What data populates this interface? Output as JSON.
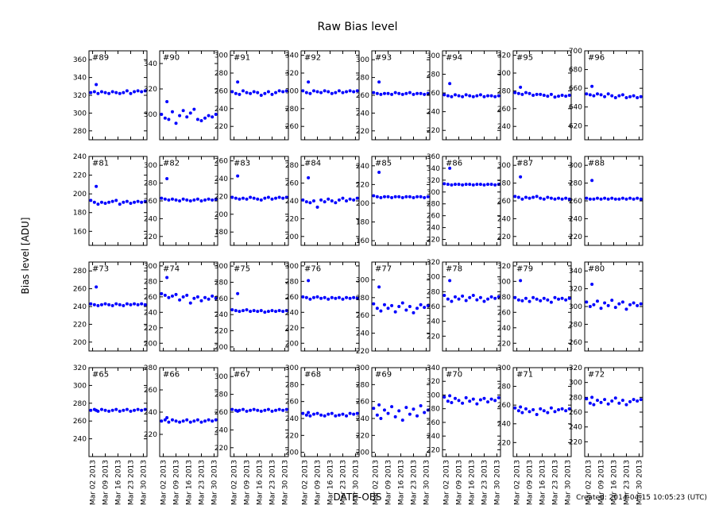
{
  "chart_data": {
    "type": "scatter",
    "title": "Raw Bias level",
    "x_label": "DATE-OBS",
    "y_label": "Bias level [ADU]",
    "footer": "Created: 2014-04-15 10:05:23 (UTC)",
    "color": "#0000ff",
    "x": [
      "2013-03-01",
      "2013-03-03",
      "2013-03-04",
      "2013-03-05",
      "2013-03-07",
      "2013-03-09",
      "2013-03-11",
      "2013-03-13",
      "2013-03-15",
      "2013-03-17",
      "2013-03-19",
      "2013-03-21",
      "2013-03-23",
      "2013-03-25",
      "2013-03-27",
      "2013-03-29",
      "2013-03-31"
    ],
    "xlim": [
      "2013-02-28",
      "2013-04-01"
    ],
    "xticks": [
      {
        "value": "2013-03-02",
        "label": "Mar 02 2013"
      },
      {
        "value": "2013-03-09",
        "label": "Mar 09 2013"
      },
      {
        "value": "2013-03-16",
        "label": "Mar 16 2013"
      },
      {
        "value": "2013-03-23",
        "label": "Mar 23 2013"
      },
      {
        "value": "2013-03-30",
        "label": "Mar 30 2013"
      }
    ],
    "panels": [
      {
        "name": "#89",
        "ylim": [
          270,
          370
        ],
        "yticks": [
          280,
          300,
          320,
          340,
          360
        ],
        "values": [
          323,
          324,
          332,
          322,
          324,
          323,
          322,
          324,
          323,
          322,
          323,
          325,
          322,
          324,
          325,
          324,
          325
        ]
      },
      {
        "name": "#90",
        "ylim": [
          280,
          350
        ],
        "yticks": [
          300,
          320,
          340
        ],
        "values": [
          300,
          297,
          310,
          296,
          302,
          293,
          299,
          303,
          298,
          301,
          304,
          296,
          295,
          297,
          299,
          298,
          300
        ]
      },
      {
        "name": "#91",
        "ylim": [
          205,
          305
        ],
        "yticks": [
          220,
          240,
          260,
          280,
          300
        ],
        "values": [
          259,
          257,
          270,
          256,
          260,
          258,
          257,
          259,
          258,
          255,
          257,
          259,
          256,
          258,
          260,
          259,
          260
        ]
      },
      {
        "name": "#92",
        "ylim": [
          245,
          345
        ],
        "yticks": [
          260,
          280,
          300,
          320,
          340
        ],
        "values": [
          300,
          298,
          310,
          297,
          300,
          299,
          298,
          300,
          299,
          297,
          298,
          300,
          298,
          299,
          300,
          299,
          300
        ]
      },
      {
        "name": "#93",
        "ylim": [
          210,
          310
        ],
        "yticks": [
          220,
          240,
          260,
          280,
          300
        ],
        "values": [
          263,
          262,
          275,
          261,
          262,
          262,
          261,
          263,
          262,
          261,
          262,
          263,
          261,
          262,
          262,
          261,
          262
        ]
      },
      {
        "name": "#94",
        "ylim": [
          210,
          305
        ],
        "yticks": [
          220,
          240,
          260,
          280,
          300
        ],
        "values": [
          258,
          257,
          270,
          256,
          258,
          257,
          256,
          258,
          257,
          256,
          257,
          258,
          256,
          257,
          257,
          256,
          257
        ]
      },
      {
        "name": "#95",
        "ylim": [
          225,
          325
        ],
        "yticks": [
          240,
          260,
          280,
          300,
          320
        ],
        "values": [
          278,
          277,
          284,
          276,
          278,
          277,
          275,
          276,
          276,
          275,
          274,
          276,
          273,
          274,
          275,
          274,
          275
        ]
      },
      {
        "name": "#96",
        "ylim": [
          605,
          700
        ],
        "yticks": [
          620,
          640,
          660,
          680,
          700
        ],
        "values": [
          654,
          653,
          662,
          652,
          654,
          653,
          651,
          654,
          652,
          650,
          652,
          653,
          650,
          651,
          652,
          650,
          651
        ]
      },
      {
        "name": "#81",
        "ylim": [
          145,
          240
        ],
        "yticks": [
          160,
          180,
          200,
          220,
          240
        ],
        "values": [
          193,
          191,
          208,
          189,
          191,
          190,
          191,
          192,
          193,
          189,
          191,
          192,
          190,
          191,
          192,
          191,
          192
        ]
      },
      {
        "name": "#82",
        "ylim": [
          210,
          310
        ],
        "yticks": [
          220,
          240,
          260,
          280,
          300
        ],
        "values": [
          263,
          262,
          285,
          261,
          262,
          261,
          260,
          262,
          261,
          260,
          261,
          262,
          260,
          261,
          262,
          261,
          262
        ]
      },
      {
        "name": "#83",
        "ylim": [
          165,
          265
        ],
        "yticks": [
          180,
          200,
          220,
          240,
          260
        ],
        "values": [
          219,
          218,
          243,
          217,
          218,
          217,
          219,
          218,
          217,
          216,
          218,
          219,
          217,
          218,
          219,
          218,
          219
        ]
      },
      {
        "name": "#84",
        "ylim": [
          190,
          290
        ],
        "yticks": [
          200,
          220,
          240,
          260,
          280
        ],
        "values": [
          241,
          239,
          266,
          238,
          240,
          233,
          241,
          239,
          242,
          240,
          238,
          241,
          243,
          240,
          242,
          241,
          243
        ]
      },
      {
        "name": "#85",
        "ylim": [
          155,
          250
        ],
        "yticks": [
          160,
          180,
          200,
          220,
          240
        ],
        "values": [
          208,
          207,
          233,
          206,
          207,
          207,
          206,
          207,
          207,
          206,
          207,
          207,
          206,
          207,
          207,
          206,
          207
        ]
      },
      {
        "name": "#86",
        "ylim": [
          210,
          360
        ],
        "yticks": [
          220,
          240,
          260,
          280,
          300,
          320,
          340,
          360
        ],
        "values": [
          314,
          313,
          340,
          312,
          313,
          313,
          312,
          313,
          313,
          312,
          313,
          313,
          312,
          313,
          313,
          312,
          313
        ]
      },
      {
        "name": "#87",
        "ylim": [
          210,
          310
        ],
        "yticks": [
          220,
          240,
          260,
          280,
          300
        ],
        "values": [
          265,
          264,
          287,
          262,
          264,
          263,
          264,
          265,
          263,
          262,
          264,
          263,
          262,
          263,
          262,
          263,
          262
        ]
      },
      {
        "name": "#88",
        "ylim": [
          210,
          310
        ],
        "yticks": [
          220,
          240,
          260,
          280,
          300
        ],
        "values": [
          263,
          262,
          283,
          262,
          263,
          262,
          263,
          262,
          263,
          262,
          262,
          263,
          262,
          263,
          262,
          263,
          262
        ]
      },
      {
        "name": "#73",
        "ylim": [
          190,
          290
        ],
        "yticks": [
          200,
          220,
          240,
          260,
          280
        ],
        "values": [
          243,
          242,
          262,
          241,
          242,
          243,
          242,
          241,
          243,
          242,
          241,
          243,
          242,
          243,
          242,
          243,
          242
        ]
      },
      {
        "name": "#74",
        "ylim": [
          190,
          305
        ],
        "yticks": [
          200,
          220,
          240,
          260,
          280,
          300
        ],
        "values": [
          264,
          262,
          285,
          259,
          261,
          263,
          256,
          260,
          262,
          252,
          258,
          260,
          255,
          259,
          257,
          261,
          258
        ]
      },
      {
        "name": "#75",
        "ylim": [
          195,
          305
        ],
        "yticks": [
          200,
          220,
          240,
          260,
          280,
          300
        ],
        "values": [
          246,
          245,
          266,
          244,
          245,
          246,
          244,
          245,
          244,
          245,
          243,
          244,
          245,
          244,
          245,
          244,
          245
        ]
      },
      {
        "name": "#76",
        "ylim": [
          190,
          305
        ],
        "yticks": [
          200,
          220,
          240,
          260,
          280,
          300
        ],
        "values": [
          260,
          259,
          281,
          257,
          259,
          260,
          258,
          259,
          257,
          259,
          258,
          259,
          257,
          259,
          258,
          259,
          258
        ]
      },
      {
        "name": "#77",
        "ylim": [
          220,
          320
        ],
        "yticks": [
          220,
          240,
          260,
          280,
          300
        ],
        "values": [
          273,
          268,
          292,
          265,
          272,
          268,
          271,
          264,
          270,
          274,
          266,
          270,
          263,
          268,
          272,
          269,
          271
        ]
      },
      {
        "name": "#78",
        "ylim": [
          200,
          320
        ],
        "yticks": [
          220,
          240,
          260,
          280,
          300,
          320
        ],
        "values": [
          275,
          270,
          295,
          267,
          273,
          270,
          274,
          268,
          272,
          275,
          269,
          272,
          267,
          270,
          273,
          271,
          273
        ]
      },
      {
        "name": "#79",
        "ylim": [
          210,
          325
        ],
        "yticks": [
          220,
          240,
          260,
          280,
          300,
          320
        ],
        "values": [
          279,
          276,
          301,
          275,
          278,
          274,
          279,
          277,
          275,
          278,
          276,
          273,
          279,
          277,
          278,
          276,
          278
        ]
      },
      {
        "name": "#80",
        "ylim": [
          250,
          350
        ],
        "yticks": [
          260,
          280,
          300,
          320,
          340
        ],
        "values": [
          305,
          300,
          325,
          302,
          306,
          298,
          304,
          301,
          307,
          299,
          303,
          305,
          297,
          302,
          304,
          301,
          303
        ]
      },
      {
        "name": "#65",
        "ylim": [
          220,
          320
        ],
        "yticks": [
          240,
          260,
          280,
          300,
          320
        ],
        "values": [
          272,
          273,
          272,
          271,
          273,
          272,
          271,
          272,
          273,
          271,
          272,
          273,
          271,
          272,
          273,
          272,
          273
        ]
      },
      {
        "name": "#66",
        "ylim": [
          200,
          280
        ],
        "yticks": [
          220,
          240,
          260,
          280
        ],
        "values": [
          232,
          233,
          235,
          231,
          233,
          232,
          231,
          232,
          233,
          231,
          232,
          233,
          231,
          232,
          233,
          232,
          233
        ]
      },
      {
        "name": "#67",
        "ylim": [
          210,
          310
        ],
        "yticks": [
          220,
          240,
          260,
          280,
          300
        ],
        "values": [
          263,
          262,
          261,
          262,
          263,
          261,
          262,
          263,
          262,
          261,
          262,
          263,
          261,
          262,
          263,
          262,
          263
        ]
      },
      {
        "name": "#68",
        "ylim": [
          195,
          300
        ],
        "yticks": [
          200,
          220,
          240,
          260,
          280,
          300
        ],
        "values": [
          246,
          244,
          247,
          243,
          245,
          246,
          244,
          243,
          245,
          246,
          243,
          244,
          245,
          243,
          246,
          245,
          246
        ]
      },
      {
        "name": "#69",
        "ylim": [
          195,
          300
        ],
        "yticks": [
          200,
          220,
          240,
          260,
          280,
          300
        ],
        "values": [
          252,
          244,
          256,
          240,
          250,
          246,
          254,
          242,
          249,
          238,
          253,
          245,
          251,
          243,
          255,
          247,
          250
        ]
      },
      {
        "name": "#70",
        "ylim": [
          210,
          340
        ],
        "yticks": [
          220,
          240,
          260,
          280,
          300,
          320,
          340
        ],
        "values": [
          297,
          291,
          299,
          289,
          295,
          292,
          288,
          296,
          291,
          294,
          287,
          293,
          295,
          290,
          294,
          292,
          296
        ]
      },
      {
        "name": "#71",
        "ylim": [
          205,
          300
        ],
        "yticks": [
          220,
          240,
          260,
          280,
          300
        ],
        "values": [
          257,
          254,
          258,
          252,
          256,
          253,
          255,
          250,
          256,
          254,
          252,
          257,
          253,
          255,
          256,
          254,
          256
        ]
      },
      {
        "name": "#72",
        "ylim": [
          200,
          320
        ],
        "yticks": [
          220,
          240,
          260,
          280,
          300,
          320
        ],
        "values": [
          278,
          272,
          280,
          270,
          276,
          273,
          277,
          271,
          275,
          279,
          272,
          276,
          270,
          274,
          277,
          275,
          277
        ]
      }
    ]
  }
}
